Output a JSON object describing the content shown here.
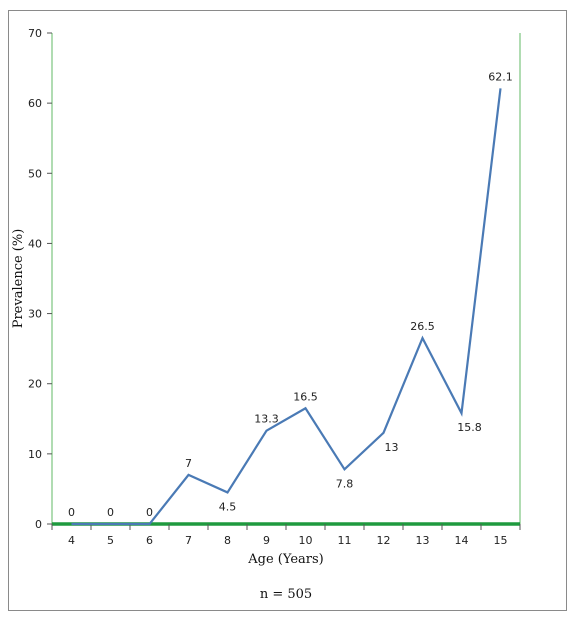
{
  "chart_data": {
    "type": "line",
    "title": "",
    "xlabel": "Age (Years)",
    "ylabel": "Prevalence (%)",
    "x": [
      4,
      5,
      6,
      7,
      8,
      9,
      10,
      11,
      12,
      13,
      14,
      15
    ],
    "values": [
      0,
      0,
      0,
      7,
      4.5,
      13.3,
      16.5,
      7.8,
      13,
      26.5,
      15.8,
      62.1
    ],
    "data_labels": [
      "0",
      "0",
      "0",
      "7",
      "4.5",
      "13.3",
      "16.5",
      "7.8",
      "13",
      "26.5",
      "15.8",
      "62.1"
    ],
    "ylim": [
      0,
      70
    ],
    "yticks": [
      0,
      10,
      20,
      30,
      40,
      50,
      60,
      70
    ],
    "grid": false,
    "line_color": "#4a7ab5",
    "axis_color": "#7cc47f",
    "baseline_color": "#1e9a3e",
    "note": "n = 505"
  }
}
